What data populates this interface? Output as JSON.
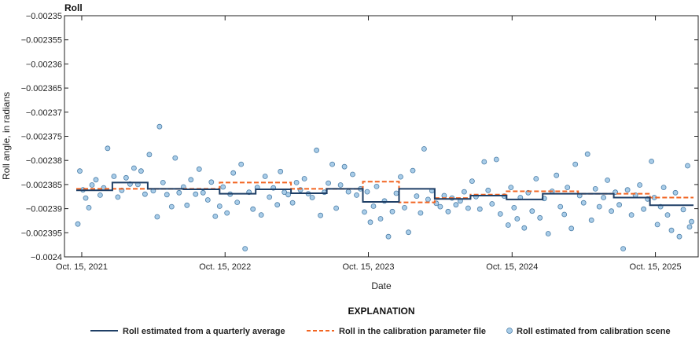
{
  "chart_data": {
    "type": "scatter",
    "title": "Roll",
    "xlabel": "Date",
    "ylabel": "Roll angle, in radians",
    "x_range": [
      "2021-09-01",
      "2026-02-01"
    ],
    "ylim": [
      -0.0024,
      -0.00235
    ],
    "y_ticks": [
      -0.00235,
      -0.002355,
      -0.00236,
      -0.002365,
      -0.00237,
      -0.002375,
      -0.00238,
      -0.002385,
      -0.00239,
      -0.002395,
      -0.0024
    ],
    "y_tick_labels": [
      "−0.00235",
      "−0.002355",
      "−0.00236",
      "−0.002365",
      "−0.00237",
      "−0.002375",
      "−0.00238",
      "−0.002385",
      "−0.00239",
      "−0.002395",
      "−0.0024"
    ],
    "x_ticks": [
      "2021-10-15",
      "2022-10-15",
      "2023-10-15",
      "2024-10-15",
      "2025-10-15"
    ],
    "x_tick_labels": [
      "Oct. 15, 2021",
      "Oct. 15, 2022",
      "Oct. 15, 2023",
      "Oct. 15, 2024",
      "Oct. 15, 2025"
    ],
    "grid": false,
    "legend_title": "EXPLANATION",
    "legend_placement": "bottom",
    "colors": {
      "quarterly": "#1f3f66",
      "calibration": "#f26522",
      "scene_fill": "#a8cce8",
      "scene_edge": "#4d7fa8"
    },
    "series": [
      {
        "name": "Roll estimated from a quarterly average",
        "style": "step",
        "points": [
          {
            "x": "2021-10-01",
            "y": -0.0023862
          },
          {
            "x": "2022-01-01",
            "y": -0.0023846
          },
          {
            "x": "2022-04-01",
            "y": -0.0023859
          },
          {
            "x": "2022-07-01",
            "y": -0.002386
          },
          {
            "x": "2022-10-01",
            "y": -0.0023869
          },
          {
            "x": "2023-01-01",
            "y": -0.002386
          },
          {
            "x": "2023-04-01",
            "y": -0.0023868
          },
          {
            "x": "2023-07-01",
            "y": -0.0023859
          },
          {
            "x": "2023-10-01",
            "y": -0.0023886
          },
          {
            "x": "2024-01-01",
            "y": -0.0023859
          },
          {
            "x": "2024-04-01",
            "y": -0.002388
          },
          {
            "x": "2024-07-01",
            "y": -0.0023873
          },
          {
            "x": "2024-10-01",
            "y": -0.0023881
          },
          {
            "x": "2025-01-01",
            "y": -0.0023869
          },
          {
            "x": "2025-04-01",
            "y": -0.0023869
          },
          {
            "x": "2025-07-01",
            "y": -0.0023877
          },
          {
            "x": "2025-10-01",
            "y": -0.0023893
          },
          {
            "x": "2026-01-20",
            "y": -0.0023893
          }
        ]
      },
      {
        "name": "Roll in the calibration parameter file",
        "style": "dashed-step",
        "points": [
          {
            "x": "2021-10-01",
            "y": -0.0023859
          },
          {
            "x": "2022-01-01",
            "y": -0.0023859
          },
          {
            "x": "2022-10-01",
            "y": -0.0023846
          },
          {
            "x": "2023-04-01",
            "y": -0.0023859
          },
          {
            "x": "2023-10-01",
            "y": -0.0023844
          },
          {
            "x": "2024-01-01",
            "y": -0.0023887
          },
          {
            "x": "2024-04-01",
            "y": -0.0023878
          },
          {
            "x": "2024-07-01",
            "y": -0.0023871
          },
          {
            "x": "2024-10-01",
            "y": -0.0023864
          },
          {
            "x": "2025-04-01",
            "y": -0.0023869
          },
          {
            "x": "2025-10-01",
            "y": -0.0023877
          },
          {
            "x": "2026-01-20",
            "y": -0.0023877
          }
        ]
      },
      {
        "name": "Roll estimated from calibration scene",
        "style": "points",
        "points": [
          {
            "x": "2021-10-05",
            "y": -0.0023932
          },
          {
            "x": "2021-10-10",
            "y": -0.0023822
          },
          {
            "x": "2021-10-18",
            "y": -0.0023861
          },
          {
            "x": "2021-10-25",
            "y": -0.0023878
          },
          {
            "x": "2021-11-02",
            "y": -0.0023898
          },
          {
            "x": "2021-11-10",
            "y": -0.0023851
          },
          {
            "x": "2021-11-20",
            "y": -0.002384
          },
          {
            "x": "2021-12-01",
            "y": -0.0023872
          },
          {
            "x": "2021-12-10",
            "y": -0.0023857
          },
          {
            "x": "2021-12-20",
            "y": -0.0023775
          },
          {
            "x": "2022-01-05",
            "y": -0.0023833
          },
          {
            "x": "2022-01-15",
            "y": -0.0023876
          },
          {
            "x": "2022-01-25",
            "y": -0.0023862
          },
          {
            "x": "2022-02-05",
            "y": -0.0023836
          },
          {
            "x": "2022-02-15",
            "y": -0.0023849
          },
          {
            "x": "2022-02-25",
            "y": -0.0023816
          },
          {
            "x": "2022-03-07",
            "y": -0.002385
          },
          {
            "x": "2022-03-15",
            "y": -0.0023822
          },
          {
            "x": "2022-03-25",
            "y": -0.002387
          },
          {
            "x": "2022-04-05",
            "y": -0.0023788
          },
          {
            "x": "2022-04-15",
            "y": -0.0023863
          },
          {
            "x": "2022-04-25",
            "y": -0.0023917
          },
          {
            "x": "2022-05-01",
            "y": -0.002373
          },
          {
            "x": "2022-05-10",
            "y": -0.0023846
          },
          {
            "x": "2022-05-20",
            "y": -0.0023871
          },
          {
            "x": "2022-06-01",
            "y": -0.0023896
          },
          {
            "x": "2022-06-10",
            "y": -0.0023795
          },
          {
            "x": "2022-06-20",
            "y": -0.0023867
          },
          {
            "x": "2022-07-01",
            "y": -0.0023855
          },
          {
            "x": "2022-07-10",
            "y": -0.0023893
          },
          {
            "x": "2022-07-20",
            "y": -0.002384
          },
          {
            "x": "2022-08-01",
            "y": -0.002387
          },
          {
            "x": "2022-08-10",
            "y": -0.0023818
          },
          {
            "x": "2022-08-20",
            "y": -0.0023867
          },
          {
            "x": "2022-09-01",
            "y": -0.0023882
          },
          {
            "x": "2022-09-10",
            "y": -0.0023845
          },
          {
            "x": "2022-09-20",
            "y": -0.0023916
          },
          {
            "x": "2022-10-01",
            "y": -0.0023895
          },
          {
            "x": "2022-10-10",
            "y": -0.0023855
          },
          {
            "x": "2022-10-20",
            "y": -0.0023909
          },
          {
            "x": "2022-10-28",
            "y": -0.002387
          },
          {
            "x": "2022-11-05",
            "y": -0.0023826
          },
          {
            "x": "2022-11-15",
            "y": -0.0023887
          },
          {
            "x": "2022-11-25",
            "y": -0.0023808
          },
          {
            "x": "2022-12-05",
            "y": -0.0023983
          },
          {
            "x": "2022-12-15",
            "y": -0.0023866
          },
          {
            "x": "2022-12-25",
            "y": -0.0023901
          },
          {
            "x": "2023-01-05",
            "y": -0.0023856
          },
          {
            "x": "2023-01-15",
            "y": -0.0023913
          },
          {
            "x": "2023-01-25",
            "y": -0.0023833
          },
          {
            "x": "2023-02-05",
            "y": -0.0023876
          },
          {
            "x": "2023-02-15",
            "y": -0.0023857
          },
          {
            "x": "2023-02-25",
            "y": -0.0023892
          },
          {
            "x": "2023-03-05",
            "y": -0.0023823
          },
          {
            "x": "2023-03-15",
            "y": -0.0023866
          },
          {
            "x": "2023-03-25",
            "y": -0.0023871
          },
          {
            "x": "2023-04-05",
            "y": -0.0023888
          },
          {
            "x": "2023-04-15",
            "y": -0.0023846
          },
          {
            "x": "2023-04-25",
            "y": -0.0023861
          },
          {
            "x": "2023-05-05",
            "y": -0.0023838
          },
          {
            "x": "2023-05-15",
            "y": -0.0023869
          },
          {
            "x": "2023-05-25",
            "y": -0.0023877
          },
          {
            "x": "2023-06-05",
            "y": -0.0023779
          },
          {
            "x": "2023-06-15",
            "y": -0.0023914
          },
          {
            "x": "2023-06-25",
            "y": -0.0023866
          },
          {
            "x": "2023-07-05",
            "y": -0.0023847
          },
          {
            "x": "2023-07-15",
            "y": -0.0023808
          },
          {
            "x": "2023-07-25",
            "y": -0.0023899
          },
          {
            "x": "2023-08-05",
            "y": -0.0023851
          },
          {
            "x": "2023-08-15",
            "y": -0.0023813
          },
          {
            "x": "2023-08-25",
            "y": -0.0023865
          },
          {
            "x": "2023-09-05",
            "y": -0.0023829
          },
          {
            "x": "2023-09-15",
            "y": -0.0023872
          },
          {
            "x": "2023-09-25",
            "y": -0.0023859
          },
          {
            "x": "2023-10-05",
            "y": -0.0023907
          },
          {
            "x": "2023-10-12",
            "y": -0.0023865
          },
          {
            "x": "2023-10-20",
            "y": -0.0023928
          },
          {
            "x": "2023-10-28",
            "y": -0.0023895
          },
          {
            "x": "2023-11-05",
            "y": -0.0023854
          },
          {
            "x": "2023-11-15",
            "y": -0.0023921
          },
          {
            "x": "2023-11-25",
            "y": -0.0023884
          },
          {
            "x": "2023-12-05",
            "y": -0.0023958
          },
          {
            "x": "2023-12-15",
            "y": -0.0023906
          },
          {
            "x": "2023-12-25",
            "y": -0.0023868
          },
          {
            "x": "2024-01-05",
            "y": -0.0023834
          },
          {
            "x": "2024-01-15",
            "y": -0.0023898
          },
          {
            "x": "2024-01-25",
            "y": -0.0023949
          },
          {
            "x": "2024-02-05",
            "y": -0.0023821
          },
          {
            "x": "2024-02-15",
            "y": -0.0023874
          },
          {
            "x": "2024-02-25",
            "y": -0.0023909
          },
          {
            "x": "2024-03-05",
            "y": -0.0023776
          },
          {
            "x": "2024-03-15",
            "y": -0.0023881
          },
          {
            "x": "2024-03-25",
            "y": -0.0023863
          },
          {
            "x": "2024-04-05",
            "y": -0.0023889
          },
          {
            "x": "2024-04-15",
            "y": -0.0023896
          },
          {
            "x": "2024-04-25",
            "y": -0.0023873
          },
          {
            "x": "2024-05-05",
            "y": -0.0023906
          },
          {
            "x": "2024-05-15",
            "y": -0.0023878
          },
          {
            "x": "2024-05-25",
            "y": -0.0023892
          },
          {
            "x": "2024-06-05",
            "y": -0.0023884
          },
          {
            "x": "2024-06-15",
            "y": -0.0023865
          },
          {
            "x": "2024-06-25",
            "y": -0.0023899
          },
          {
            "x": "2024-07-05",
            "y": -0.0023843
          },
          {
            "x": "2024-07-15",
            "y": -0.0023875
          },
          {
            "x": "2024-07-25",
            "y": -0.0023901
          },
          {
            "x": "2024-08-05",
            "y": -0.0023803
          },
          {
            "x": "2024-08-15",
            "y": -0.0023862
          },
          {
            "x": "2024-08-25",
            "y": -0.002389
          },
          {
            "x": "2024-09-05",
            "y": -0.0023798
          },
          {
            "x": "2024-09-15",
            "y": -0.0023911
          },
          {
            "x": "2024-09-25",
            "y": -0.0023874
          },
          {
            "x": "2024-10-05",
            "y": -0.0023934
          },
          {
            "x": "2024-10-12",
            "y": -0.0023856
          },
          {
            "x": "2024-10-20",
            "y": -0.0023898
          },
          {
            "x": "2024-10-28",
            "y": -0.0023921
          },
          {
            "x": "2024-11-05",
            "y": -0.0023877
          },
          {
            "x": "2024-11-15",
            "y": -0.002394
          },
          {
            "x": "2024-11-25",
            "y": -0.0023867
          },
          {
            "x": "2024-12-05",
            "y": -0.0023905
          },
          {
            "x": "2024-12-15",
            "y": -0.0023838
          },
          {
            "x": "2024-12-25",
            "y": -0.0023919
          },
          {
            "x": "2025-01-05",
            "y": -0.0023879
          },
          {
            "x": "2025-01-15",
            "y": -0.0023952
          },
          {
            "x": "2025-01-25",
            "y": -0.0023864
          },
          {
            "x": "2025-02-05",
            "y": -0.0023831
          },
          {
            "x": "2025-02-15",
            "y": -0.0023896
          },
          {
            "x": "2025-02-25",
            "y": -0.0023912
          },
          {
            "x": "2025-03-05",
            "y": -0.0023856
          },
          {
            "x": "2025-03-15",
            "y": -0.0023941
          },
          {
            "x": "2025-03-25",
            "y": -0.0023808
          },
          {
            "x": "2025-04-05",
            "y": -0.0023873
          },
          {
            "x": "2025-04-15",
            "y": -0.0023888
          },
          {
            "x": "2025-04-25",
            "y": -0.0023787
          },
          {
            "x": "2025-05-05",
            "y": -0.0023924
          },
          {
            "x": "2025-05-15",
            "y": -0.0023859
          },
          {
            "x": "2025-05-25",
            "y": -0.0023896
          },
          {
            "x": "2025-06-05",
            "y": -0.0023877
          },
          {
            "x": "2025-06-15",
            "y": -0.0023841
          },
          {
            "x": "2025-06-25",
            "y": -0.0023905
          },
          {
            "x": "2025-07-05",
            "y": -0.0023866
          },
          {
            "x": "2025-07-15",
            "y": -0.0023892
          },
          {
            "x": "2025-07-25",
            "y": -0.0023983
          },
          {
            "x": "2025-08-05",
            "y": -0.0023861
          },
          {
            "x": "2025-08-15",
            "y": -0.0023913
          },
          {
            "x": "2025-08-25",
            "y": -0.0023872
          },
          {
            "x": "2025-09-05",
            "y": -0.0023851
          },
          {
            "x": "2025-09-15",
            "y": -0.0023901
          },
          {
            "x": "2025-09-25",
            "y": -0.002388
          },
          {
            "x": "2025-10-05",
            "y": -0.0023802
          },
          {
            "x": "2025-10-12",
            "y": -0.0023877
          },
          {
            "x": "2025-10-20",
            "y": -0.0023933
          },
          {
            "x": "2025-10-28",
            "y": -0.0023896
          },
          {
            "x": "2025-11-05",
            "y": -0.0023856
          },
          {
            "x": "2025-11-15",
            "y": -0.0023913
          },
          {
            "x": "2025-11-25",
            "y": -0.0023945
          },
          {
            "x": "2025-12-05",
            "y": -0.0023867
          },
          {
            "x": "2025-12-15",
            "y": -0.0023958
          },
          {
            "x": "2025-12-25",
            "y": -0.0023902
          },
          {
            "x": "2026-01-05",
            "y": -0.0023811
          },
          {
            "x": "2026-01-10",
            "y": -0.0023938
          },
          {
            "x": "2026-01-15",
            "y": -0.0023927
          }
        ]
      }
    ]
  }
}
